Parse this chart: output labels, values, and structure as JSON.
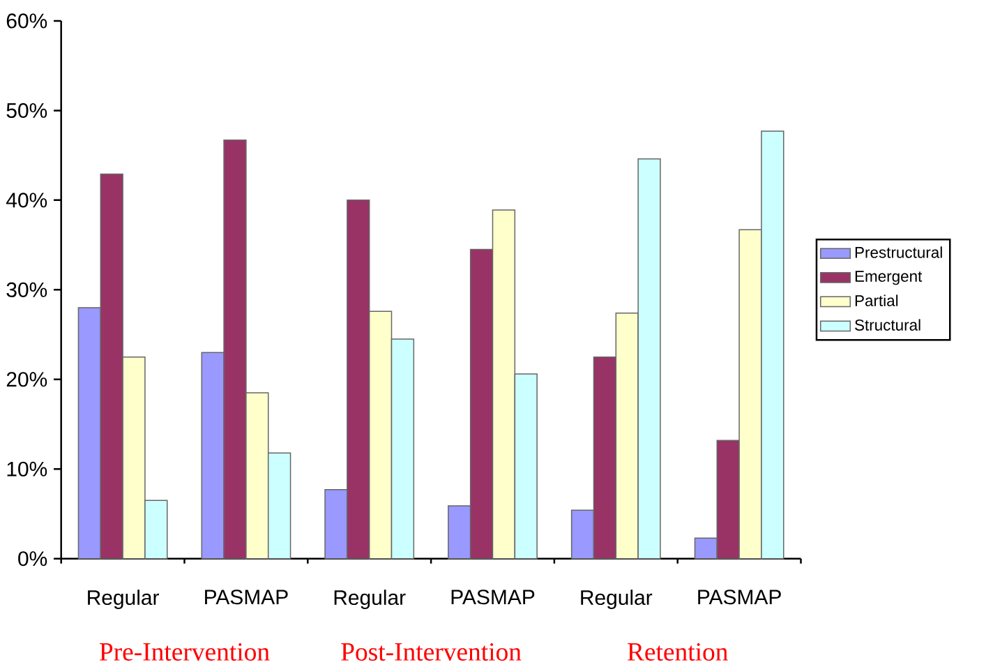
{
  "chart_data": {
    "type": "bar",
    "categories": [
      "Regular",
      "PASMAP",
      "Regular",
      "PASMAP",
      "Regular",
      "PASMAP"
    ],
    "series": [
      {
        "name": "Prestructural",
        "color": "#9999ff",
        "values": [
          28,
          23,
          7.7,
          5.9,
          5.4,
          2.3
        ]
      },
      {
        "name": "Emergent",
        "color": "#993366",
        "values": [
          42.9,
          46.7,
          40,
          34.5,
          22.5,
          13.2
        ]
      },
      {
        "name": "Partial",
        "color": "#ffffcc",
        "values": [
          22.5,
          18.5,
          27.6,
          38.9,
          27.4,
          36.7
        ]
      },
      {
        "name": "Structural",
        "color": "#ccffff",
        "values": [
          6.5,
          11.8,
          24.5,
          20.6,
          44.6,
          47.7
        ]
      }
    ],
    "ylim": [
      0,
      60
    ],
    "yticks": [
      {
        "value": 0,
        "label": "0%"
      },
      {
        "value": 10,
        "label": "10%"
      },
      {
        "value": 20,
        "label": "20%"
      },
      {
        "value": 30,
        "label": "30%"
      },
      {
        "value": 40,
        "label": "40%"
      },
      {
        "value": 50,
        "label": "50%"
      },
      {
        "value": 60,
        "label": "60%"
      }
    ],
    "annotations": [
      "Pre-Intervention",
      "Post-Intervention",
      "Retention"
    ],
    "legend": "right",
    "grid": false
  }
}
